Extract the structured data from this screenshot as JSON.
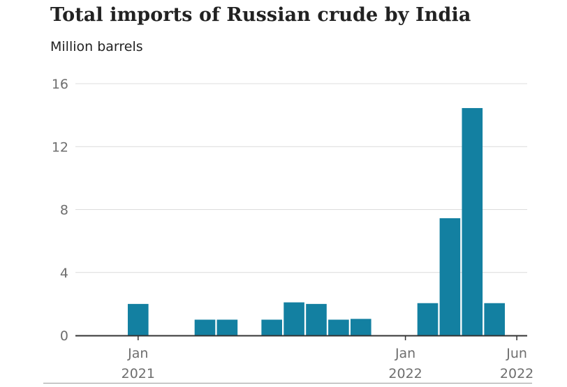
{
  "title": "Total imports of Russian crude by India",
  "subtitle": "Million barrels",
  "chart_data": {
    "type": "bar",
    "title": "Total imports of Russian crude by India",
    "subtitle": "Million barrels",
    "ylabel": "",
    "xlabel": "",
    "ylim": [
      0,
      16
    ],
    "yticks": [
      0,
      4,
      8,
      12,
      16
    ],
    "grid": true,
    "bar_color": "#1380a1",
    "categories": [
      "2021-01",
      "2021-02",
      "2021-03",
      "2021-04",
      "2021-05",
      "2021-06",
      "2021-07",
      "2021-08",
      "2021-09",
      "2021-10",
      "2021-11",
      "2021-12",
      "2022-01",
      "2022-02",
      "2022-03",
      "2022-04",
      "2022-05",
      "2022-06"
    ],
    "values": [
      2.0,
      0,
      0,
      1.0,
      1.0,
      0,
      1.0,
      2.1,
      2.0,
      1.0,
      1.05,
      0,
      0,
      2.05,
      7.45,
      14.45,
      2.05,
      0
    ],
    "xtick_labels": [
      {
        "category": "2021-01",
        "lines": [
          "Jan",
          "2021"
        ]
      },
      {
        "category": "2022-01",
        "lines": [
          "Jan",
          "2022"
        ]
      },
      {
        "category": "2022-06",
        "lines": [
          "Jun",
          "2022"
        ]
      }
    ]
  }
}
